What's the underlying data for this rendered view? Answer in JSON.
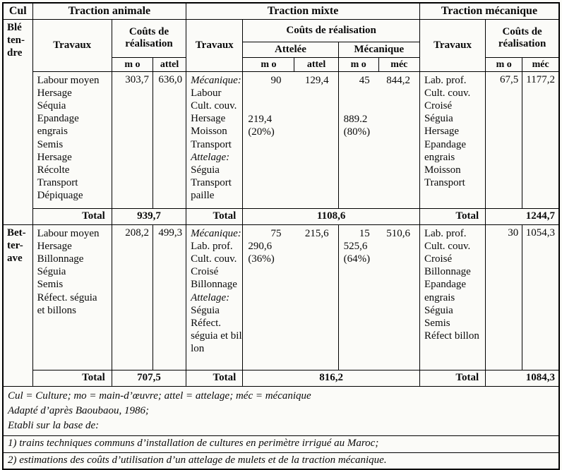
{
  "labels": {
    "cul": "Cul",
    "travaux": "Travaux",
    "couts": "Coûts de réalisation",
    "attelee": "Attelée",
    "mecanique": "Mécanique",
    "mo": "m o",
    "attel": "attel",
    "mec": "méc",
    "total": "Total"
  },
  "sections": {
    "animale": "Traction animale",
    "mixte": "Traction mixte",
    "mecanique": "Traction mécanique"
  },
  "ble": {
    "label_lines": [
      "Blé",
      "ten-",
      "dre"
    ],
    "animale": {
      "travaux": [
        "Labour moyen",
        "Hersage",
        "Séquia",
        "Epandage",
        "engrais",
        "Semis",
        "Hersage",
        "Récolte",
        "Transport",
        "Dépiquage"
      ],
      "mo": "303,7",
      "attel": "636,0",
      "total": "939,7"
    },
    "mixte": {
      "travaux": [
        {
          "t": "Mécanique:",
          "i": true
        },
        {
          "t": "Labour"
        },
        {
          "t": "Cult. couv."
        },
        {
          "t": "Hersage"
        },
        {
          "t": "Moisson"
        },
        {
          "t": "Transport"
        },
        {
          "t": "Attelage:",
          "i": true
        },
        {
          "t": "Séguia"
        },
        {
          "t": "Transport"
        },
        {
          "t": "paille"
        }
      ],
      "attelee": {
        "mo": "90",
        "attel": "129,4",
        "subtotal": "219,4",
        "pct": "(20%)"
      },
      "mecanique": {
        "mo": "45",
        "mec": "844,2",
        "subtotal": "889.2",
        "pct": "(80%)"
      },
      "total": "1108,6"
    },
    "meca": {
      "travaux": [
        "Lab. prof.",
        "Cult. couv.",
        "Croisé",
        "Séguia",
        "Hersage",
        "Epandage",
        "engrais",
        "Moisson",
        "Transport"
      ],
      "mo": "67,5",
      "mec": "1177,2",
      "total": "1244,7"
    }
  },
  "betterave": {
    "label_lines": [
      "Bet-",
      "ter-",
      "ave"
    ],
    "animale": {
      "travaux": [
        "Labour moyen",
        "Hersage",
        "Billonnage",
        "Séguia",
        "Semis",
        "Réfect. séguia",
        "et billons"
      ],
      "mo": "208,2",
      "attel": "499,3",
      "total": "707,5"
    },
    "mixte": {
      "travaux": [
        {
          "t": "Mécanique:",
          "i": true
        },
        {
          "t": "Lab. prof."
        },
        {
          "t": "Cult. couv."
        },
        {
          "t": "Croisé"
        },
        {
          "t": "Billonnage"
        },
        {
          "t": "Attelage:",
          "i": true
        },
        {
          "t": "Séguia"
        },
        {
          "t": "Réfect."
        },
        {
          "t": "séguia et bil-"
        },
        {
          "t": "lon"
        }
      ],
      "attelee": {
        "mo": "75",
        "attel": "215,6",
        "subtotal": "290,6",
        "pct": "(36%)"
      },
      "mecanique": {
        "mo": "15",
        "mec": "510,6",
        "subtotal": "525,6",
        "pct": "(64%)"
      },
      "total": "816,2"
    },
    "meca": {
      "travaux": [
        "Lab. prof.",
        "Cult. couv.",
        "Croisé",
        "Billonnage",
        "Epandage",
        "engrais",
        "Séguia",
        "Semis",
        "Réfect billon"
      ],
      "mo": "30",
      "mec": "1054,3",
      "total": "1084,3"
    }
  },
  "notes": [
    "Cul = Culture; mo = main-d’œuvre; attel = attelage; méc = mécanique",
    "Adapté d’après Baoubaou, 1986;",
    "Etabli sur la base de:",
    "1) trains techniques communs d’installation de cultures en perimètre irrigué au Maroc;",
    "2) estimations des coûts d’utilisation d’un attelage de mulets et de la traction mécanique."
  ]
}
